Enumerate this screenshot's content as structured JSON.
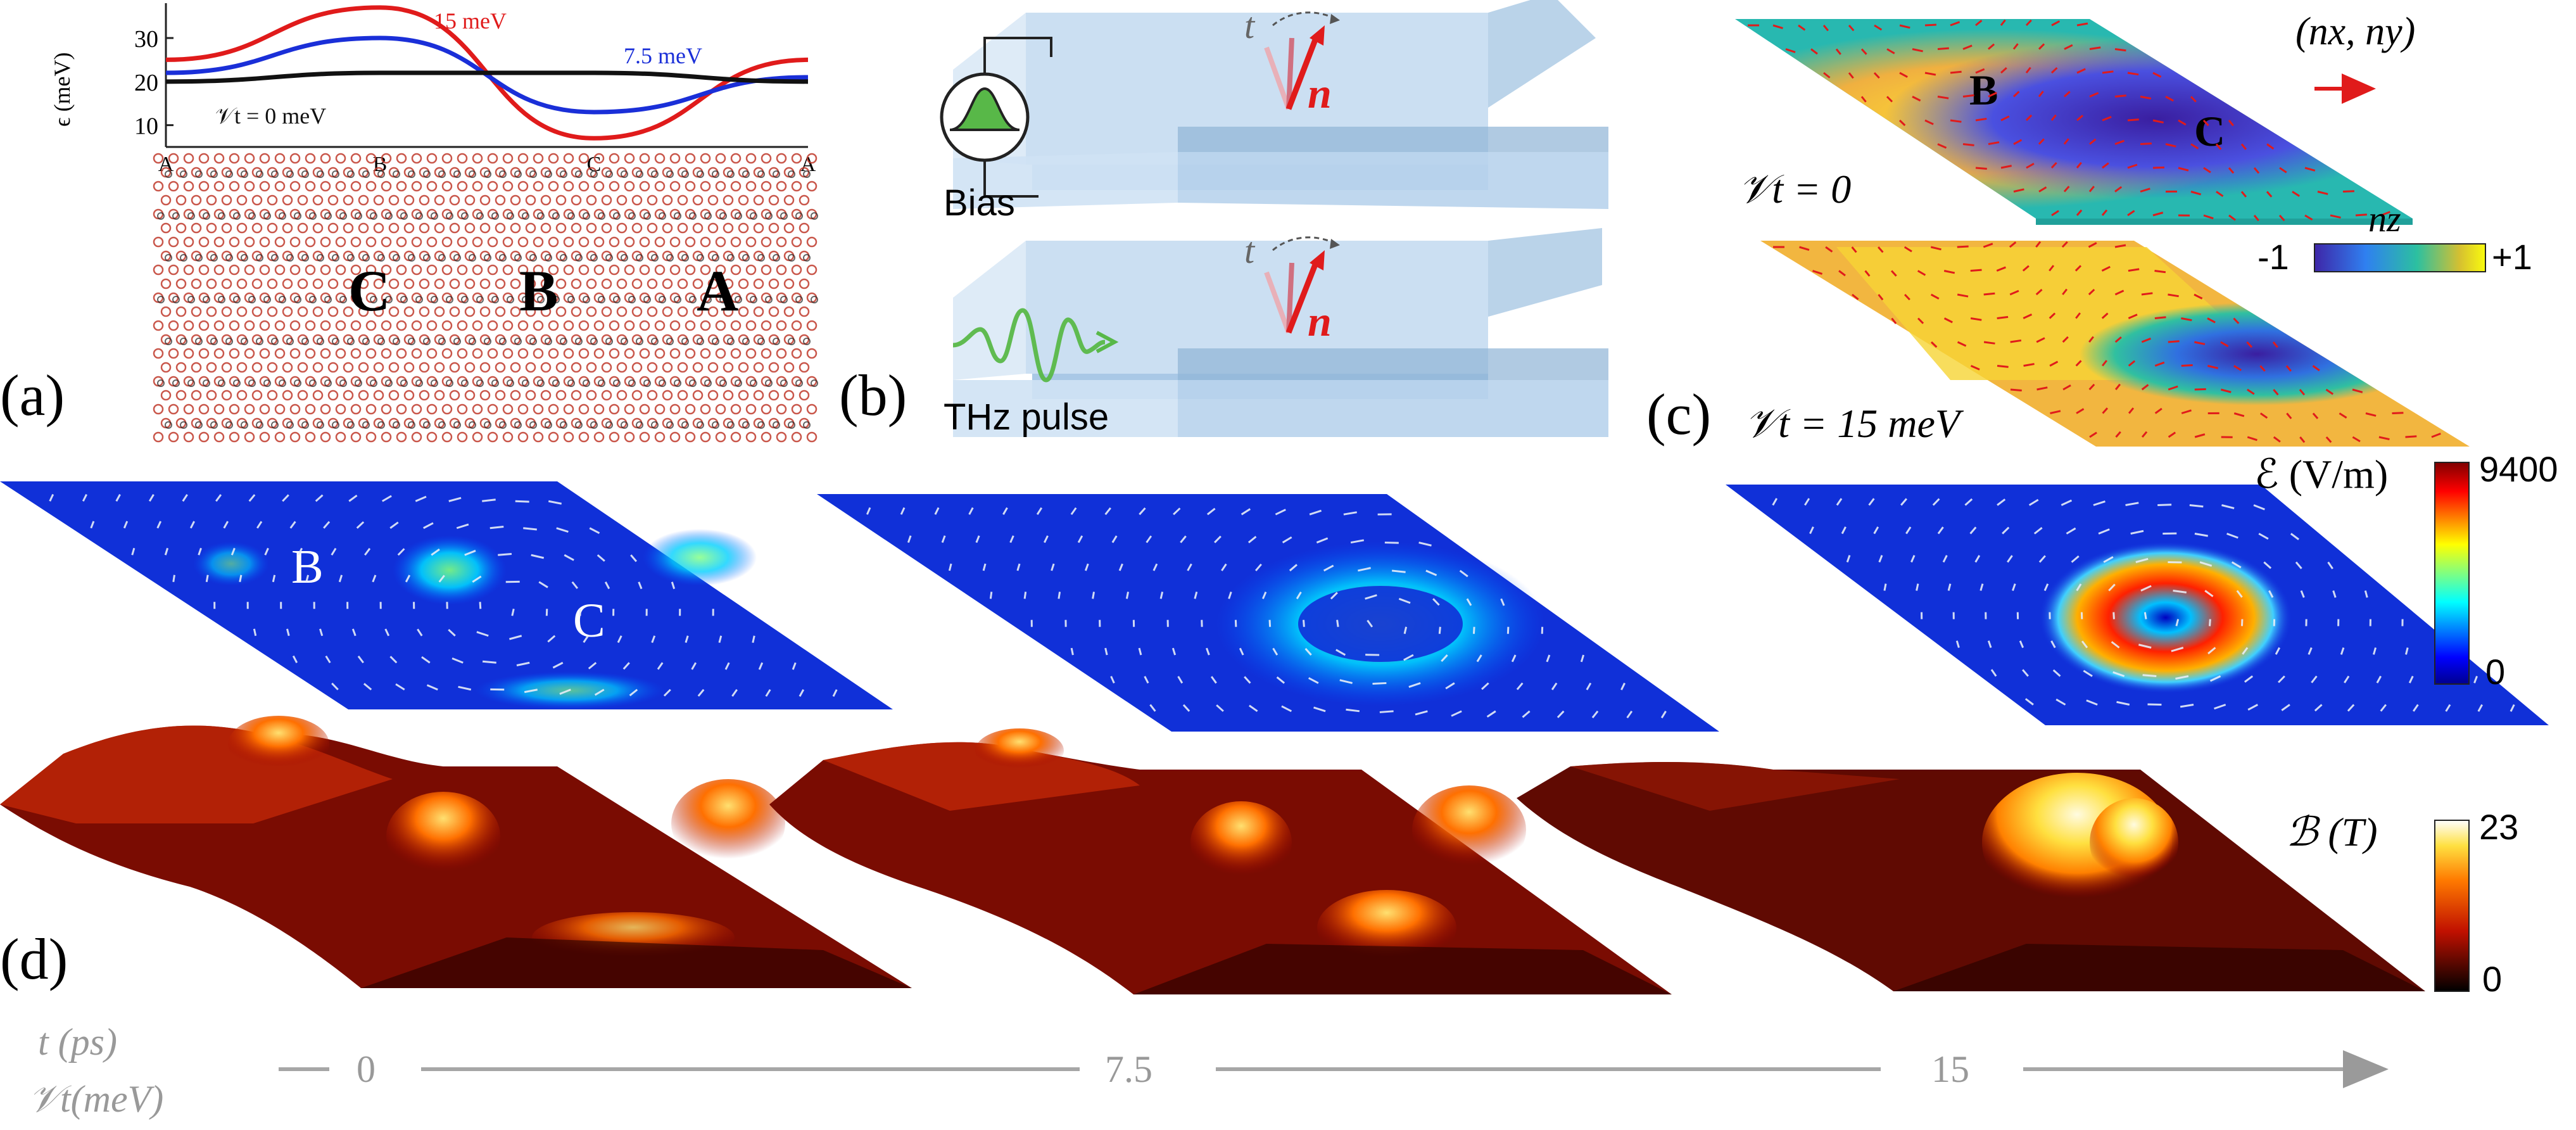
{
  "panel_labels": {
    "a": "(a)",
    "b": "(b)",
    "c": "(c)",
    "d": "(d)"
  },
  "panel_a": {
    "ylabel": "ϵ (meV)",
    "yticks": [
      "10",
      "20",
      "30"
    ],
    "xticks": [
      "A",
      "B",
      "C",
      "A"
    ],
    "curve_labels": {
      "v15": "15 meV",
      "v7": "7.5 meV",
      "v0": "𝒱t = 0 meV"
    },
    "lattice_labels": {
      "C": "C",
      "B": "B",
      "A": "A"
    },
    "colors": {
      "v15": "#e01b1b",
      "v7": "#1a2fd8",
      "v0": "#111111",
      "atom": "#c0392b"
    }
  },
  "chart_data": {
    "type": "line",
    "x": [
      "A",
      "B",
      "C",
      "A"
    ],
    "ylabel": "ϵ (meV)",
    "ylim": [
      5,
      38
    ],
    "series": [
      {
        "name": "15 meV",
        "values": [
          25,
          37,
          7,
          25
        ]
      },
      {
        "name": "7.5 meV",
        "values": [
          22,
          30,
          13,
          21
        ]
      },
      {
        "name": "𝒱t = 0 meV",
        "values": [
          20,
          22,
          22,
          20
        ]
      }
    ]
  },
  "panel_b": {
    "bias_label": "Bias",
    "pulse_label": "THz pulse",
    "t_label": "t",
    "n_label": "n",
    "colors": {
      "plate": "#bcd6ef",
      "plate_edge": "#8fb3d6",
      "arrow": "#e01b1b",
      "pulse": "#58b848"
    }
  },
  "panel_c": {
    "vector_label": "(nx, ny)",
    "top_label": "𝒱t = 0",
    "bottom_label": "𝒱t = 15 meV",
    "region_labels": {
      "B": "B",
      "C": "C"
    },
    "colorbar": {
      "title": "nz",
      "min": "-1",
      "max": "+1"
    }
  },
  "panel_d": {
    "e_labels": {
      "B": "B",
      "C": "C"
    },
    "e_colorbar": {
      "title": "ℰ (V/m)",
      "max": "9400",
      "min": "0"
    },
    "b_colorbar": {
      "title": "ℬ (T)",
      "max": "23",
      "min": "0"
    },
    "axis_t": "t (ps)",
    "axis_v": "𝒱t(meV)",
    "ticks": [
      "0",
      "7.5",
      "15"
    ]
  }
}
